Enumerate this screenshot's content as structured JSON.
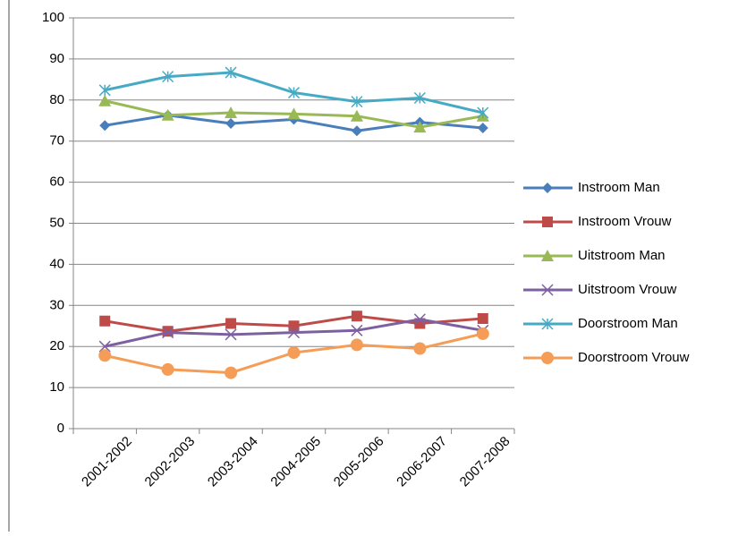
{
  "chart_data": {
    "type": "line",
    "categories": [
      "2001-2002",
      "2002-2003",
      "2003-2004",
      "2004-2005",
      "2005-2006",
      "2006-2007",
      "2007-2008"
    ],
    "series": [
      {
        "name": "Instroom Man",
        "color": "#4a7ebb",
        "marker": "diamond",
        "values": [
          73.8,
          76.3,
          74.3,
          75.3,
          72.5,
          74.6,
          73.2
        ]
      },
      {
        "name": "Instroom Vrouw",
        "color": "#be4b48",
        "marker": "square",
        "values": [
          26.2,
          23.7,
          25.6,
          25.0,
          27.4,
          25.6,
          26.8
        ]
      },
      {
        "name": "Uitstroom Man",
        "color": "#98b954",
        "marker": "triangle",
        "values": [
          79.8,
          76.3,
          76.9,
          76.6,
          76.1,
          73.4,
          76.1
        ]
      },
      {
        "name": "Uitstroom Vrouw",
        "color": "#7d60a0",
        "marker": "x",
        "values": [
          20.0,
          23.4,
          22.9,
          23.4,
          23.9,
          26.6,
          23.9
        ]
      },
      {
        "name": "Doorstroom Man",
        "color": "#46aac5",
        "marker": "star",
        "values": [
          82.4,
          85.7,
          86.7,
          81.8,
          79.6,
          80.5,
          76.9
        ]
      },
      {
        "name": "Doorstroom Vrouw",
        "color": "#f59d56",
        "marker": "circle",
        "values": [
          17.8,
          14.4,
          13.6,
          18.5,
          20.4,
          19.5,
          23.1
        ]
      }
    ],
    "ylim": [
      0,
      100
    ],
    "yticks": [
      0,
      10,
      20,
      30,
      40,
      50,
      60,
      70,
      80,
      90,
      100
    ],
    "grid": true,
    "legend": "right"
  }
}
